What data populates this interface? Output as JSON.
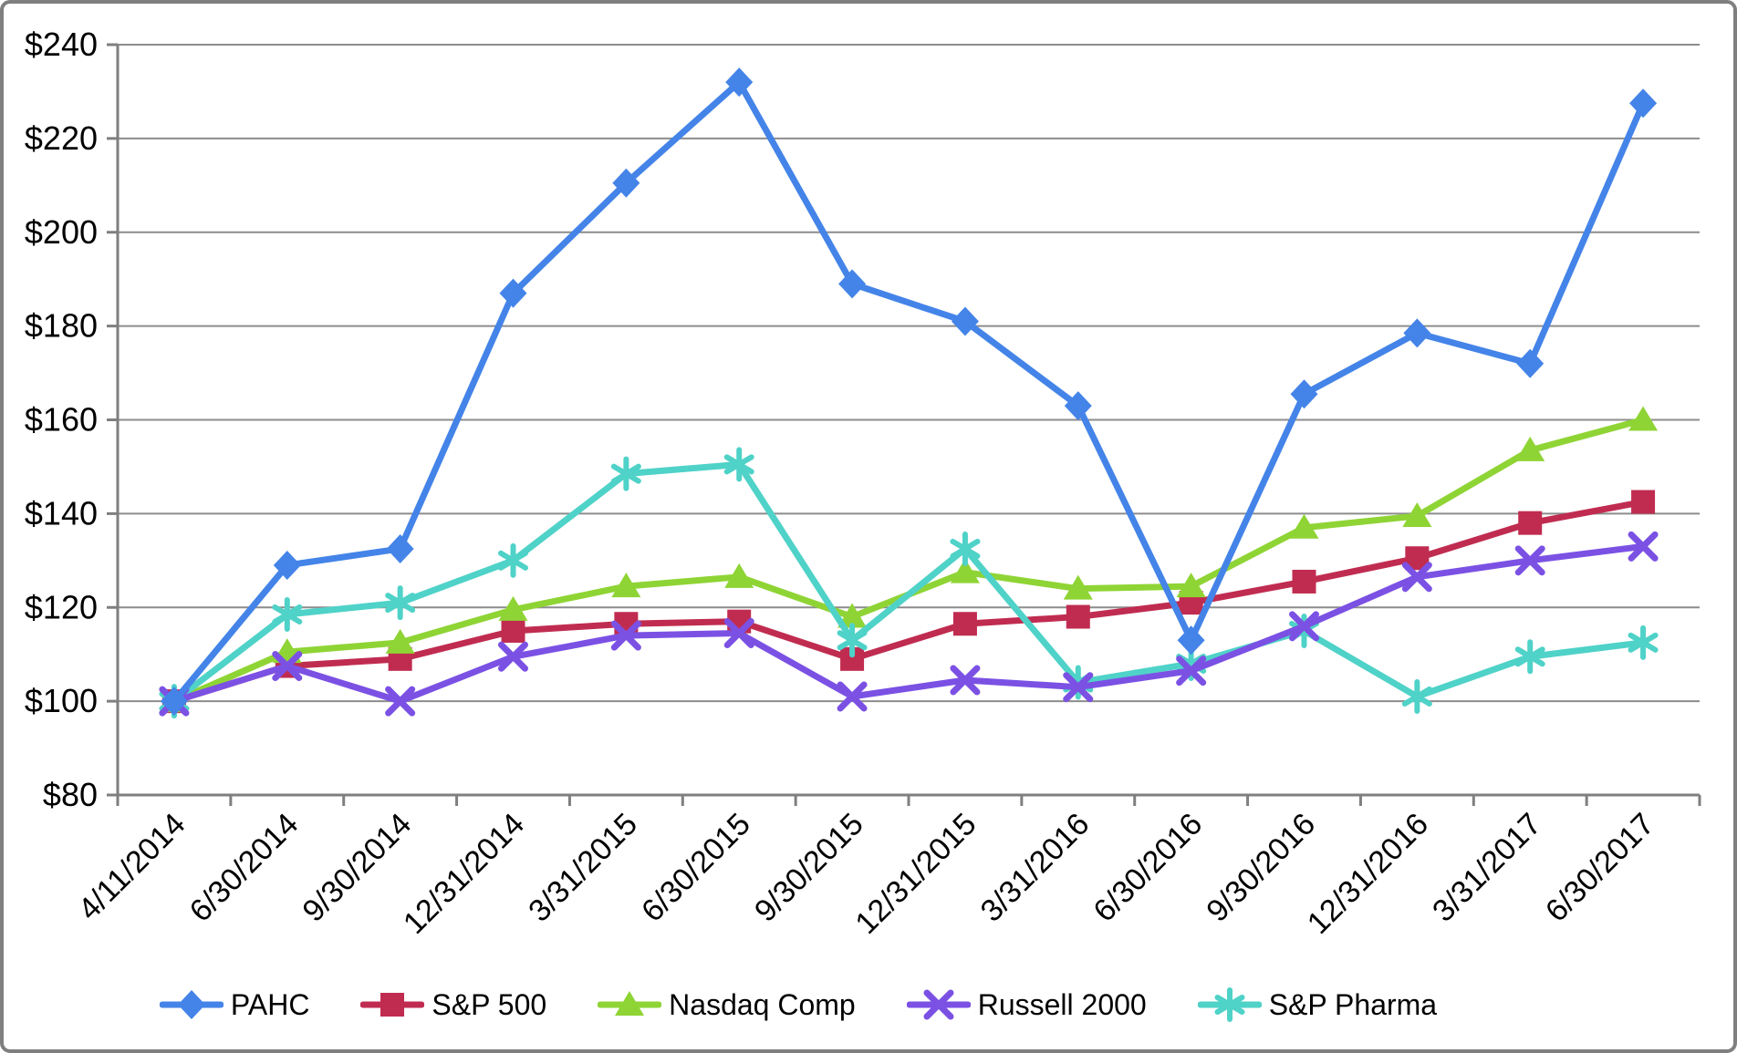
{
  "chart_data": {
    "type": "line",
    "title": "",
    "categories": [
      "4/11/2014",
      "6/30/2014",
      "9/30/2014",
      "12/31/2014",
      "3/31/2015",
      "6/30/2015",
      "9/30/2015",
      "12/31/2015",
      "3/31/2016",
      "6/30/2016",
      "9/30/2016",
      "12/31/2016",
      "3/31/2017",
      "6/30/2017"
    ],
    "series": [
      {
        "name": "PAHC",
        "color": "#4484E8",
        "marker": "diamond",
        "values": [
          100,
          129,
          132.5,
          187,
          210.5,
          232,
          189,
          181,
          163,
          113,
          165.5,
          178.5,
          172,
          227.5
        ]
      },
      {
        "name": "S&P 500",
        "color": "#C02C50",
        "marker": "square",
        "values": [
          100,
          107.5,
          109,
          115,
          116.5,
          117,
          109,
          116.5,
          118,
          121,
          125.5,
          130.5,
          138,
          142.5
        ]
      },
      {
        "name": "Nasdaq Comp",
        "color": "#8FD435",
        "marker": "triangle",
        "values": [
          100,
          110.5,
          112.5,
          119.5,
          124.5,
          126.5,
          118,
          127.5,
          124,
          124.5,
          137,
          139.5,
          153.5,
          160
        ]
      },
      {
        "name": "Russell 2000",
        "color": "#7B51E4",
        "marker": "x",
        "values": [
          100,
          107.5,
          100,
          109.5,
          114,
          114.5,
          101,
          104.5,
          103,
          106.5,
          116,
          126.5,
          130,
          133
        ]
      },
      {
        "name": "S&P Pharma",
        "color": "#4FD2C8",
        "marker": "asterisk",
        "values": [
          100,
          118.5,
          121,
          130,
          148.5,
          150.5,
          113,
          132.5,
          104,
          108,
          115,
          101,
          109.5,
          112.5
        ]
      }
    ],
    "ylim": [
      80,
      240
    ],
    "y_tick_step": 20,
    "y_tick_prefix": "$",
    "grid": true,
    "legend_position": "bottom",
    "draw_order": [
      1,
      2,
      4,
      3,
      0
    ],
    "style": {
      "grid_color": "#8C8C8C",
      "axis_color": "#7F7F7F",
      "border_color": "#7F7F7F",
      "text_color": "#000000",
      "background": "#FFFFFF"
    }
  }
}
